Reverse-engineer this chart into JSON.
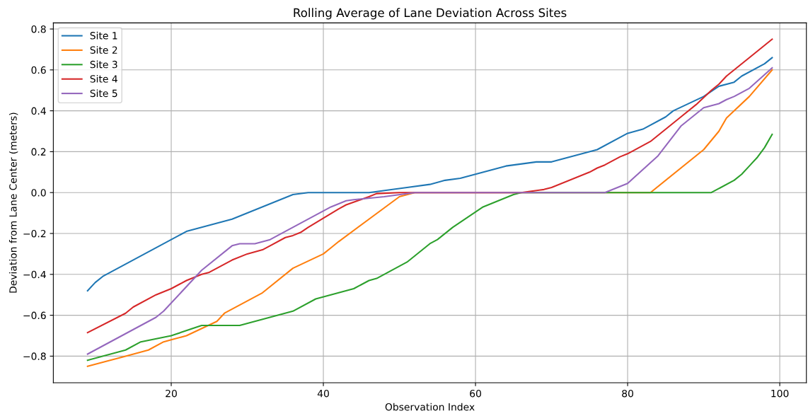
{
  "chart_data": {
    "type": "line",
    "title": "Rolling Average of Lane Deviation Across Sites",
    "xlabel": "Observation Index",
    "ylabel": "Deviation from Lane Center (meters)",
    "xlim": [
      4.5,
      103.5
    ],
    "xticks": [
      20,
      40,
      60,
      80,
      100
    ],
    "ylim": [
      -0.93,
      0.83
    ],
    "yticks": [
      {
        "value": -0.8,
        "label": "−0.8"
      },
      {
        "value": -0.6,
        "label": "−0.6"
      },
      {
        "value": -0.4,
        "label": "−0.4"
      },
      {
        "value": -0.2,
        "label": "−0.2"
      },
      {
        "value": 0,
        "label": "0.0"
      },
      {
        "value": 0.2,
        "label": "0.2"
      },
      {
        "value": 0.4,
        "label": "0.4"
      },
      {
        "value": 0.6,
        "label": "0.6"
      },
      {
        "value": 0.8,
        "label": "0.8"
      }
    ],
    "grid": true,
    "legend": "top left",
    "series": [
      {
        "name": "Site 1",
        "color": "#1f77b4",
        "x": [
          9,
          10,
          11,
          22,
          28,
          36,
          38,
          46,
          51,
          54,
          56,
          58,
          64,
          68,
          70,
          76,
          80,
          82,
          85,
          86,
          90,
          92,
          94,
          95,
          98,
          99
        ],
        "values": [
          -0.48,
          -0.44,
          -0.41,
          -0.19,
          -0.13,
          -0.01,
          0,
          0,
          0.025,
          0.04,
          0.06,
          0.07,
          0.13,
          0.15,
          0.15,
          0.21,
          0.29,
          0.31,
          0.37,
          0.4,
          0.47,
          0.52,
          0.54,
          0.57,
          0.63,
          0.66
        ]
      },
      {
        "name": "Site 2",
        "color": "#ff7f0e",
        "x": [
          9,
          14,
          17,
          19,
          20,
          22,
          26,
          27,
          32,
          36,
          40,
          41,
          42,
          50,
          52,
          83,
          90,
          92,
          93,
          96,
          99
        ],
        "values": [
          -0.85,
          -0.8,
          -0.77,
          -0.73,
          -0.72,
          -0.7,
          -0.63,
          -0.59,
          -0.49,
          -0.37,
          -0.3,
          -0.27,
          -0.24,
          -0.02,
          0,
          0,
          0.21,
          0.3,
          0.365,
          0.47,
          0.6
        ]
      },
      {
        "name": "Site 3",
        "color": "#2ca02c",
        "x": [
          9,
          14,
          16,
          20,
          24,
          29,
          36,
          39,
          44,
          46,
          47,
          51,
          54,
          55,
          57,
          61,
          65,
          66,
          91,
          94,
          95,
          96,
          97,
          98,
          99
        ],
        "values": [
          -0.82,
          -0.77,
          -0.73,
          -0.7,
          -0.65,
          -0.65,
          -0.58,
          -0.52,
          -0.47,
          -0.43,
          -0.42,
          -0.34,
          -0.25,
          -0.23,
          -0.17,
          -0.07,
          -0.01,
          0,
          0,
          0.06,
          0.09,
          0.13,
          0.17,
          0.22,
          0.285
        ]
      },
      {
        "name": "Site 4",
        "color": "#d62728",
        "x": [
          9,
          14,
          15,
          18,
          20,
          22,
          24,
          25,
          28,
          30,
          32,
          33,
          35,
          36,
          37,
          38,
          42,
          43,
          46,
          47,
          50,
          66,
          67,
          69,
          70,
          75,
          76,
          77,
          79,
          80,
          83,
          87,
          89,
          91,
          92,
          93,
          96,
          99
        ],
        "values": [
          -0.685,
          -0.59,
          -0.56,
          -0.5,
          -0.47,
          -0.43,
          -0.4,
          -0.39,
          -0.33,
          -0.3,
          -0.28,
          -0.26,
          -0.22,
          -0.21,
          -0.195,
          -0.17,
          -0.08,
          -0.06,
          -0.02,
          -0.005,
          0,
          0,
          0.005,
          0.015,
          0.025,
          0.1,
          0.12,
          0.135,
          0.175,
          0.19,
          0.25,
          0.37,
          0.43,
          0.5,
          0.53,
          0.57,
          0.66,
          0.75
        ]
      },
      {
        "name": "Site 5",
        "color": "#9467bd",
        "x": [
          9,
          18,
          19,
          24,
          28,
          29,
          31,
          33,
          41,
          43,
          44,
          48,
          52,
          77,
          80,
          84,
          87,
          90,
          92,
          93,
          94,
          96,
          99
        ],
        "values": [
          -0.79,
          -0.61,
          -0.58,
          -0.38,
          -0.26,
          -0.25,
          -0.25,
          -0.23,
          -0.07,
          -0.04,
          -0.035,
          -0.02,
          0,
          0,
          0.045,
          0.18,
          0.325,
          0.415,
          0.435,
          0.455,
          0.47,
          0.51,
          0.61
        ]
      }
    ]
  }
}
